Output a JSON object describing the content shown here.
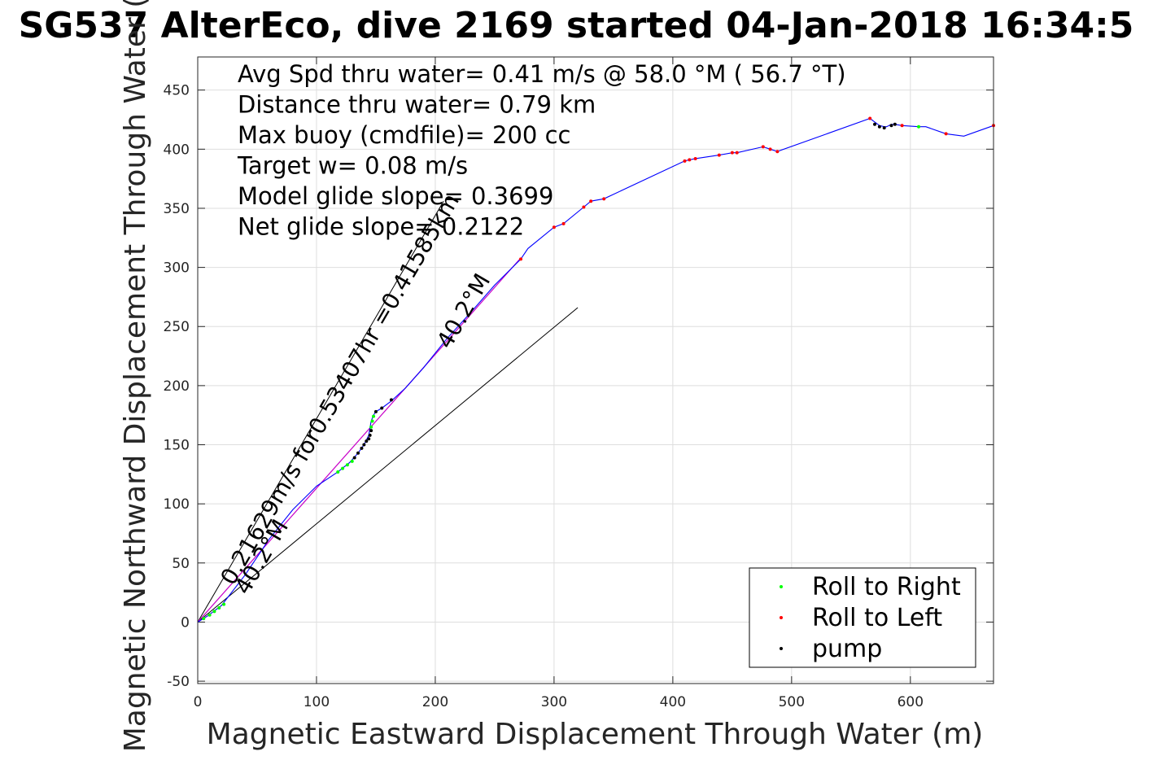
{
  "chart_data": {
    "type": "line",
    "title": "SG537 AlterEco, dive 2169 started 04-Jan-2018 16:34:5",
    "xlabel": "Magnetic Eastward Displacement Through Water (m)",
    "ylabel": "Magnetic Northward Displacement Through Water (",
    "xlim": [
      0,
      670
    ],
    "ylim": [
      -52,
      478
    ],
    "xticks": [
      0,
      100,
      200,
      300,
      400,
      500,
      600
    ],
    "yticks": [
      -50,
      0,
      50,
      100,
      150,
      200,
      250,
      300,
      350,
      400,
      450
    ],
    "grid": true,
    "info_lines": [
      "Avg Spd thru water=  0.41 m/s @  58.0 °M ( 56.7 °T)",
      "Distance thru water=  0.79 km",
      "Max buoy (cmdfile)= 200 cc",
      "Target w= 0.08 m/s",
      "Model glide slope= 0.3699",
      "Net glide slope= 0.2122"
    ],
    "rotated_labels": [
      {
        "text": "0.21629m/s for0.53407hr =0.41585km",
        "x": 30,
        "y": 30
      },
      {
        "text": "40.2°M",
        "x": 42,
        "y": 22
      },
      {
        "text": "40.2°M",
        "x": 212,
        "y": 230
      }
    ],
    "guide_lines": [
      {
        "x": [
          0,
          207
        ],
        "y": [
          0,
          356
        ]
      },
      {
        "x": [
          0,
          320
        ],
        "y": [
          0,
          266
        ]
      }
    ],
    "net_track": {
      "x": [
        0,
        272
      ],
      "y": [
        0,
        308
      ],
      "color": "#c800c8"
    },
    "track": {
      "name": "track",
      "color": "#0000ff",
      "x": [
        0,
        8,
        20,
        40,
        60,
        80,
        100,
        118,
        128,
        135,
        140,
        144,
        146,
        148,
        150,
        155,
        163,
        175,
        190,
        210,
        230,
        250,
        272,
        278,
        300,
        308,
        325,
        331,
        342,
        410,
        414,
        419,
        439,
        450,
        454,
        476,
        482,
        488,
        566,
        570,
        574,
        578,
        580,
        584,
        587,
        593,
        607,
        613,
        630,
        645,
        670
      ],
      "y": [
        0,
        5,
        14,
        40,
        70,
        95,
        115,
        127,
        135,
        143,
        150,
        158,
        170,
        175,
        178,
        181,
        187,
        198,
        215,
        240,
        262,
        285,
        307,
        316,
        334,
        337,
        351,
        356,
        358,
        390,
        391,
        392,
        395,
        397,
        397,
        402,
        400,
        398,
        426,
        423,
        420,
        419,
        419,
        421,
        421,
        420,
        419,
        419,
        413,
        411,
        420
      ]
    },
    "series": [
      {
        "name": "Roll to Right",
        "color": "#00ff00",
        "x": [
          5,
          10,
          14,
          18,
          22,
          118,
          122,
          126,
          130,
          146,
          147,
          148,
          607
        ],
        "y": [
          3,
          6,
          9,
          12,
          15,
          127,
          130,
          133,
          136,
          165,
          170,
          174,
          419
        ]
      },
      {
        "name": "Roll to Left",
        "color": "#ff0000",
        "x": [
          272,
          300,
          308,
          325,
          331,
          342,
          410,
          414,
          419,
          439,
          450,
          454,
          476,
          482,
          488,
          566,
          593,
          630,
          670
        ],
        "y": [
          307,
          334,
          337,
          351,
          356,
          358,
          390,
          391,
          392,
          395,
          397,
          397,
          402,
          400,
          398,
          426,
          420,
          413,
          420
        ]
      },
      {
        "name": "pump",
        "color": "#000000",
        "x": [
          132,
          135,
          138,
          140,
          142,
          144,
          145,
          146,
          150,
          155,
          163,
          570,
          574,
          578,
          584,
          587
        ],
        "y": [
          139,
          143,
          147,
          150,
          153,
          155,
          158,
          162,
          178,
          181,
          188,
          421,
          419,
          418,
          420,
          421
        ]
      }
    ],
    "legend": {
      "placement": "bottom-right",
      "entries": [
        "Roll to Right",
        "Roll to Left",
        "pump"
      ]
    }
  }
}
